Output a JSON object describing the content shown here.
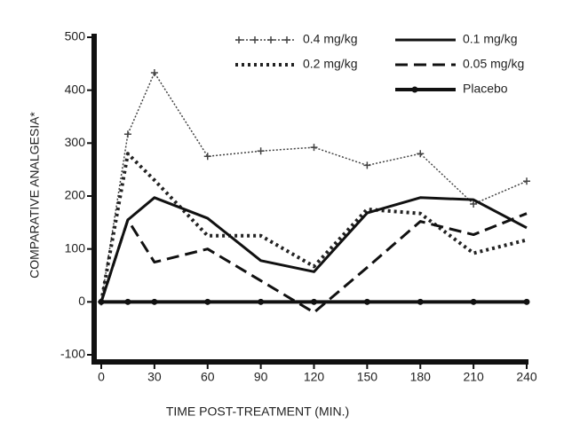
{
  "chart_data": {
    "type": "line",
    "x_label": "TIME POST-TREATMENT (MIN.)",
    "y_label": "COMPARATIVE ANALGESIA*",
    "x": [
      0,
      15,
      30,
      60,
      90,
      120,
      150,
      180,
      210,
      240
    ],
    "xlim": [
      0,
      240
    ],
    "xticks": [
      0,
      30,
      60,
      90,
      120,
      150,
      180,
      210,
      240
    ],
    "ylim": [
      -100,
      500
    ],
    "yticks": [
      -100,
      0,
      100,
      200,
      300,
      400,
      500
    ],
    "series": [
      {
        "name": "0.4 mg/kg",
        "color": "#444444",
        "style": "plus",
        "values": [
          0,
          317,
          433,
          275,
          285,
          292,
          258,
          280,
          185,
          228
        ]
      },
      {
        "name": "0.2 mg/kg",
        "color": "#222222",
        "style": "dotted",
        "values": [
          0,
          280,
          230,
          125,
          125,
          67,
          175,
          167,
          92,
          117
        ]
      },
      {
        "name": "0.1 mg/kg",
        "color": "#111111",
        "style": "solid",
        "values": [
          0,
          155,
          197,
          158,
          78,
          57,
          168,
          197,
          193,
          140
        ]
      },
      {
        "name": "0.05 mg/kg",
        "color": "#111111",
        "style": "dashed",
        "values": [
          0,
          155,
          75,
          100,
          40,
          -20,
          65,
          152,
          127,
          167
        ]
      },
      {
        "name": "Placebo",
        "color": "#111111",
        "style": "circle",
        "values": [
          0,
          0,
          0,
          0,
          0,
          0,
          0,
          0,
          0,
          0
        ]
      }
    ]
  }
}
